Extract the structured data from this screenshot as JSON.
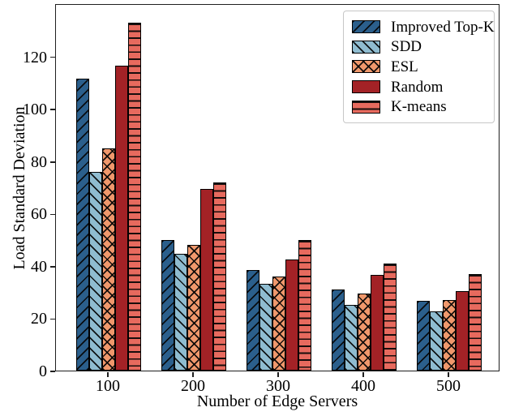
{
  "figure": {
    "background": "#ffffff"
  },
  "chart_data": {
    "type": "bar",
    "title": "",
    "xlabel": "Number of Edge Servers",
    "ylabel": "Load Standard Deviation",
    "categories": [
      "100",
      "200",
      "300",
      "400",
      "500"
    ],
    "series": [
      {
        "name": "Improved Top-K",
        "color": "#2b5f8c",
        "hatch": "forward-diagonal",
        "values": [
          111.5,
          50,
          38.5,
          31,
          26.5
        ]
      },
      {
        "name": "SDD",
        "color": "#8fbcd0",
        "hatch": "back-diagonal",
        "values": [
          76,
          44.5,
          33,
          25,
          22.5
        ]
      },
      {
        "name": "ESL",
        "color": "#f0986c",
        "hatch": "cross",
        "values": [
          85,
          48,
          36,
          29.5,
          27
        ]
      },
      {
        "name": "Random",
        "color": "#a32226",
        "hatch": "none",
        "values": [
          116.5,
          69.5,
          42.5,
          36.5,
          30.5
        ]
      },
      {
        "name": "K-means",
        "color": "#e76a5e",
        "hatch": "horizontal",
        "values": [
          133,
          72,
          50,
          41,
          37
        ]
      }
    ],
    "yticks": [
      0,
      20,
      40,
      60,
      80,
      100,
      120
    ],
    "ylim": [
      0,
      139.4
    ],
    "grid": false,
    "legend_position": "upper-right",
    "axis_color": "#1f1f1f",
    "hatch_color": "#000000"
  }
}
